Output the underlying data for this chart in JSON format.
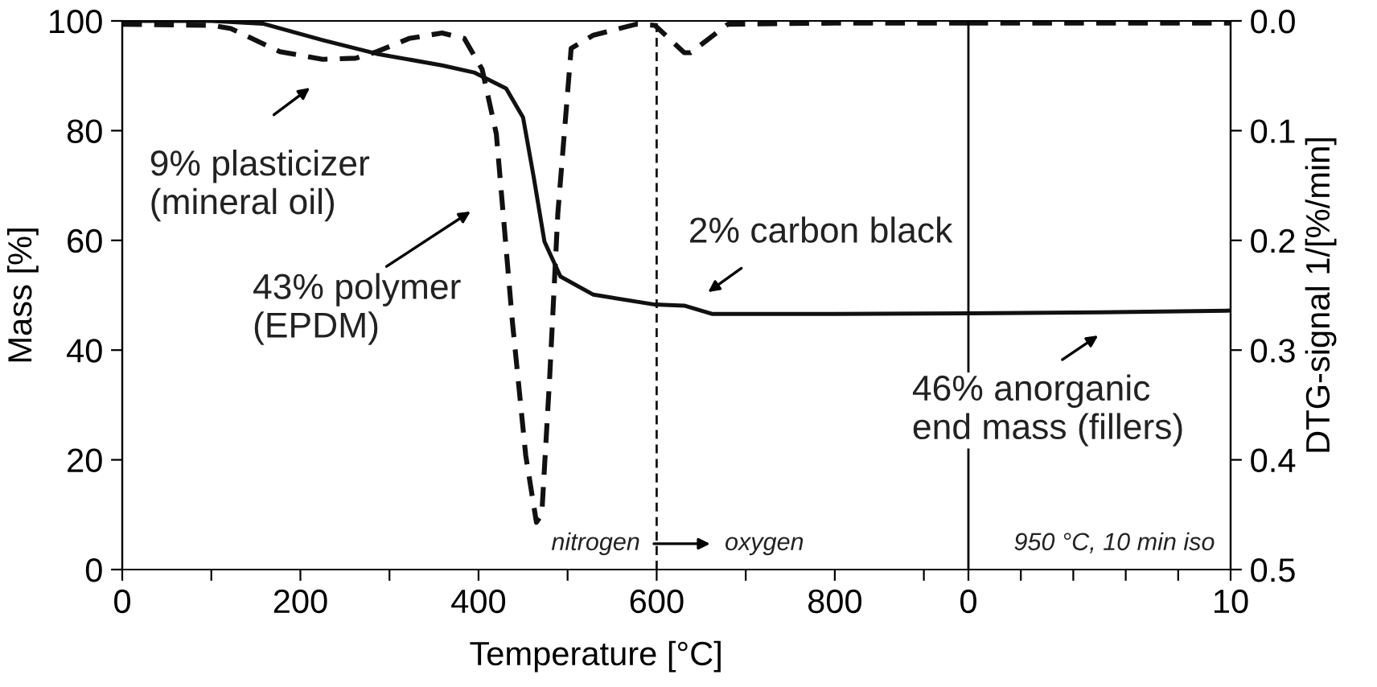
{
  "chart_data": [
    {
      "type": "line",
      "xlabel": "Temperature [°C]",
      "ylabel": "Mass [%]",
      "xlim": [
        0,
        950
      ],
      "xticks": [
        0,
        {
          "value": 100,
          "label": null
        },
        200,
        {
          "value": 300,
          "label": null
        },
        400,
        {
          "value": 500,
          "label": null
        },
        600,
        {
          "value": 700,
          "label": null
        },
        800,
        {
          "value": 900,
          "label": null
        }
      ],
      "ylim": [
        0,
        100
      ],
      "yticks": [
        0,
        20,
        40,
        60,
        80,
        100
      ],
      "y2lim": [
        0.5,
        0
      ],
      "grid": false,
      "marker": "none",
      "series": [
        {
          "color": "#111111",
          "line_style": "solid",
          "x": [
            0,
            100,
            158,
            225,
            286,
            359,
            395,
            431,
            450,
            462,
            474,
            492,
            529,
            598,
            631,
            662,
            800,
            950
          ],
          "values": [
            100,
            100,
            99.5,
            96.5,
            94,
            91.9,
            90.6,
            87.7,
            82.4,
            71.5,
            59.8,
            53.4,
            50.1,
            48.3,
            48.1,
            46.6,
            46.6,
            46.7
          ]
        },
        {
          "color": "#111111",
          "line_style": "dashed",
          "axis": "y2",
          "x": [
            0,
            100,
            122,
            177,
            225,
            262,
            286,
            322,
            359,
            384,
            404,
            420,
            438,
            453,
            465,
            471,
            480,
            489,
            504,
            529,
            577,
            598,
            631,
            638,
            680,
            800,
            950
          ],
          "values": [
            0.003,
            0.004,
            0.007,
            0.028,
            0.035,
            0.034,
            0.028,
            0.016,
            0.011,
            0.016,
            0.044,
            0.103,
            0.274,
            0.396,
            0.457,
            0.45,
            0.323,
            0.176,
            0.025,
            0.013,
            0.003,
            0.004,
            0.029,
            0.029,
            0.003,
            0.002,
            0.002
          ]
        }
      ],
      "ref_lines": [
        {
          "axis": "x",
          "value": 600,
          "line_style": "dashed",
          "color": "#111111"
        }
      ],
      "annotations": [
        "9% plasticizer\n(mineral oil)",
        "43% polymer\n(EPDM)",
        "2% carbon black",
        "nitrogen",
        "oxygen"
      ]
    },
    {
      "type": "line",
      "y2label": "DTG-signal 1/[%/min]",
      "xlim": [
        0,
        10
      ],
      "xticks": [
        0,
        {
          "value": 2,
          "label": null
        },
        {
          "value": 4,
          "label": null
        },
        {
          "value": 6,
          "label": null
        },
        {
          "value": 8,
          "label": null
        },
        10
      ],
      "ylim": [
        0,
        100
      ],
      "y2lim": [
        0.5,
        0
      ],
      "y2ticks": [
        {
          "value": 0,
          "label": "0.0"
        },
        {
          "value": 0.1,
          "label": "0.1"
        },
        {
          "value": 0.2,
          "label": "0.2"
        },
        {
          "value": 0.3,
          "label": "0.3"
        },
        {
          "value": 0.4,
          "label": "0.4"
        },
        {
          "value": 0.5,
          "label": "0.5"
        }
      ],
      "grid": false,
      "marker": "none",
      "series": [
        {
          "color": "#111111",
          "line_style": "solid",
          "x": [
            0,
            5,
            10
          ],
          "values": [
            46.7,
            46.9,
            47.2
          ]
        },
        {
          "color": "#111111",
          "line_style": "dashed",
          "axis": "y2",
          "x": [
            0,
            5,
            10
          ],
          "values": [
            0.002,
            0.002,
            0.002
          ]
        }
      ],
      "annotations": [
        "46% anorganic\nend mass (fillers)",
        "950 °C, 10 min iso"
      ]
    }
  ]
}
